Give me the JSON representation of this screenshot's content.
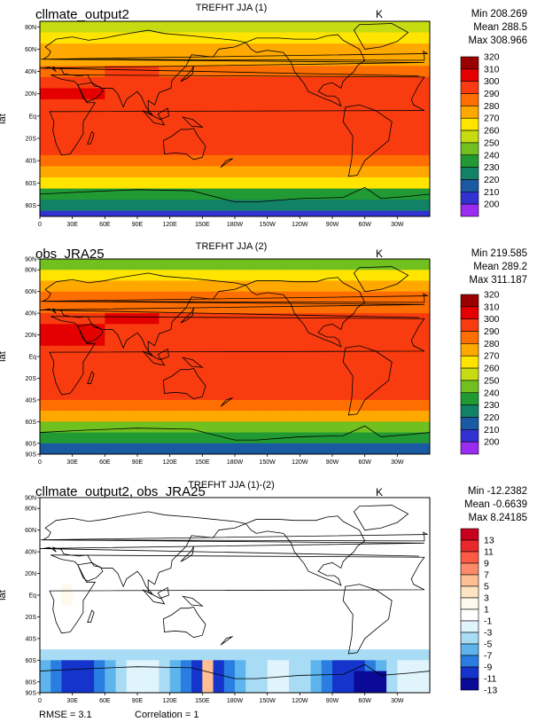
{
  "panels": [
    {
      "title_left": "cllmate_output2",
      "title_center": "TREFHT JJA (1)",
      "units": "K",
      "stats": [
        "Min 208.269",
        "Mean 288.5",
        "Max 308.966"
      ],
      "colorbar_labels": [
        "320",
        "310",
        "300",
        "290",
        "280",
        "270",
        "260",
        "250",
        "240",
        "230",
        "220",
        "210",
        "200"
      ],
      "colorbar_colors": [
        "#9b0000",
        "#e40000",
        "#f83c10",
        "#ff6e00",
        "#ffa800",
        "#ffe400",
        "#c6dc10",
        "#70c020",
        "#229a34",
        "#128266",
        "#1a5aa2",
        "#3232d2",
        "#9a2cf0"
      ],
      "field": "model"
    },
    {
      "title_left": "obs_JRA25",
      "title_center": "TREFHT JJA (2)",
      "units": "K",
      "stats": [
        "Min 219.585",
        "Mean 289.2",
        "Max 311.187"
      ],
      "colorbar_labels": [
        "320",
        "310",
        "300",
        "290",
        "280",
        "270",
        "260",
        "250",
        "240",
        "230",
        "220",
        "210",
        "200"
      ],
      "colorbar_colors": [
        "#9b0000",
        "#e40000",
        "#f83c10",
        "#ff6e00",
        "#ffa800",
        "#ffe400",
        "#c6dc10",
        "#70c020",
        "#229a34",
        "#128266",
        "#1a5aa2",
        "#3232d2",
        "#9a2cf0"
      ],
      "field": "obs"
    },
    {
      "title_left": "cllmate_output2, obs_JRA25",
      "title_center": "TREFHT JJA (1)-(2)",
      "units": "K",
      "stats": [
        "Min -12.2382",
        "Mean -0.6639",
        "Max 8.24185"
      ],
      "colorbar_labels": [
        "13",
        "11",
        "9",
        "7",
        "5",
        "3",
        "1",
        "-1",
        "-3",
        "-5",
        "-7",
        "-9",
        "-11",
        "-13"
      ],
      "colorbar_colors": [
        "#c8001e",
        "#e8282a",
        "#ff5a46",
        "#ff8a6a",
        "#ffbf92",
        "#ffe4c4",
        "#fff8ec",
        "#ffffff",
        "#e0f4fc",
        "#a8dcf4",
        "#5eb4ec",
        "#2a7ee2",
        "#1434cc",
        "#0a0a96"
      ],
      "field": "diff"
    }
  ],
  "lon_ticks": [
    "0",
    "30E",
    "60E",
    "90E",
    "120E",
    "150E",
    "180W",
    "150W",
    "120W",
    "90W",
    "60W",
    "30W"
  ],
  "lat_ticks_1": [
    "80N",
    "60N",
    "40N",
    "20N",
    "Eq",
    "20S",
    "40S",
    "60S",
    "80S"
  ],
  "lat_ticks_2": [
    "90N",
    "80N",
    "60N",
    "40N",
    "20N",
    "Eq",
    "20S",
    "40S",
    "60S",
    "80S",
    "90S"
  ],
  "lat_ticks_3": [
    "90N",
    "80N",
    "60N",
    "40N",
    "20N",
    "Eq",
    "20S",
    "40S",
    "60S",
    "80S",
    "90S"
  ],
  "lat_label": "lat",
  "footer": {
    "rmse": "RMSE = 3.1",
    "correlation": "Correlation = 1"
  }
}
